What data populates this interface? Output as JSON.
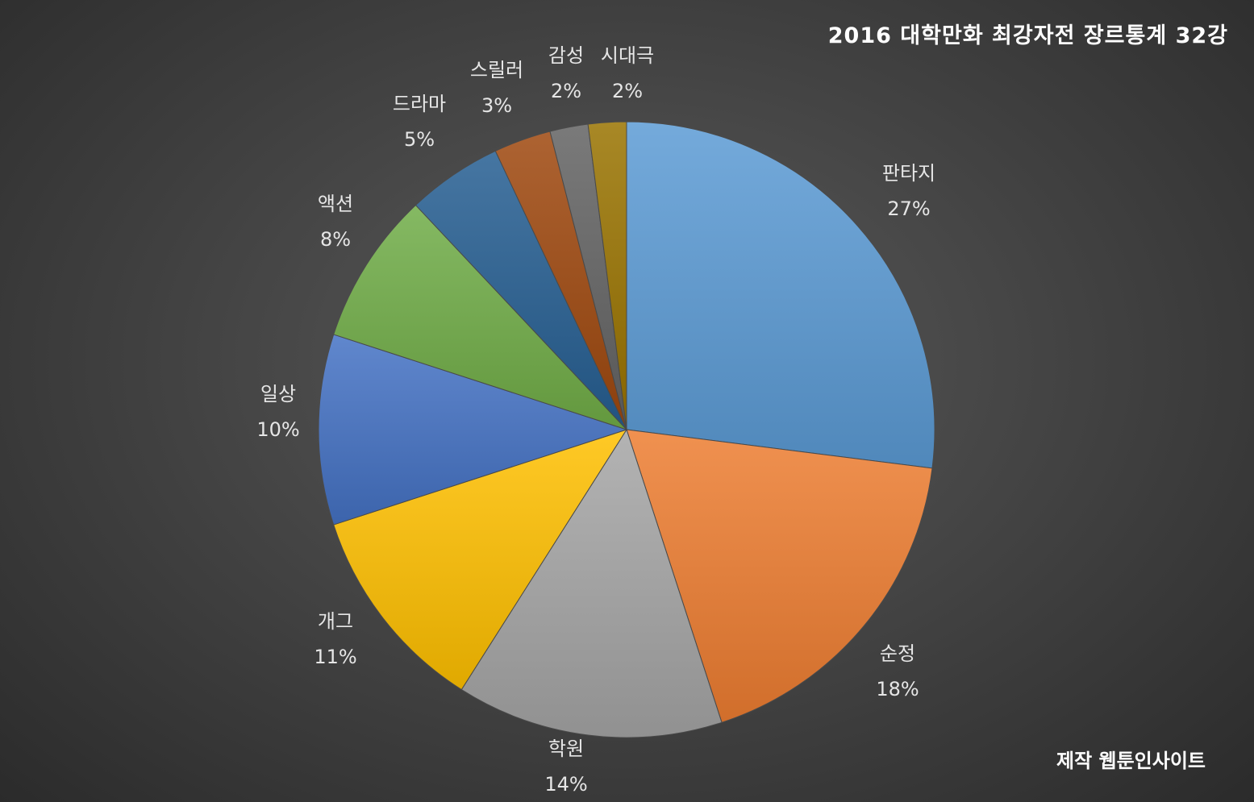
{
  "title": "2016 대학만화 최강자전 장르통계 32강",
  "credit": "제작 웹툰인사이트",
  "chart_data": {
    "type": "pie",
    "title": "2016 대학만화 최강자전 장르통계 32강",
    "start_angle_deg": 0,
    "direction": "clockwise",
    "slices": [
      {
        "label": "판타지",
        "value": 27,
        "pct_label": "27%",
        "color": "#5b9bd5"
      },
      {
        "label": "순정",
        "value": 18,
        "pct_label": "18%",
        "color": "#ed7d31"
      },
      {
        "label": "학원",
        "value": 14,
        "pct_label": "14%",
        "color": "#a5a5a5"
      },
      {
        "label": "개그",
        "value": 11,
        "pct_label": "11%",
        "color": "#ffc000"
      },
      {
        "label": "일상",
        "value": 10,
        "pct_label": "10%",
        "color": "#4472c4"
      },
      {
        "label": "액션",
        "value": 8,
        "pct_label": "8%",
        "color": "#70ad47"
      },
      {
        "label": "드라마",
        "value": 5,
        "pct_label": "5%",
        "color": "#255e91"
      },
      {
        "label": "스릴러",
        "value": 3,
        "pct_label": "3%",
        "color": "#9e480e"
      },
      {
        "label": "감성",
        "value": 2,
        "pct_label": "2%",
        "color": "#636363"
      },
      {
        "label": "시대극",
        "value": 2,
        "pct_label": "2%",
        "color": "#997300"
      }
    ],
    "legend": "none",
    "data_labels": "outside"
  }
}
